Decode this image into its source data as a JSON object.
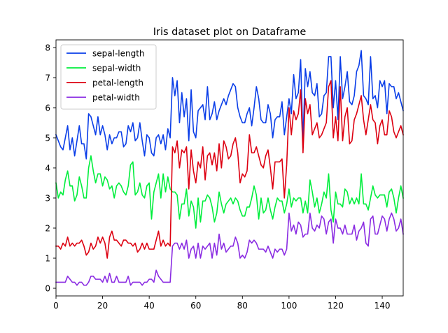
{
  "chart_data": {
    "type": "line",
    "title": "Iris dataset plot on Dataframe",
    "xlabel": "",
    "ylabel": "",
    "xlim": [
      0,
      149
    ],
    "ylim": [
      -0.255,
      8.255
    ],
    "x_ticks": [
      0,
      20,
      40,
      60,
      80,
      100,
      120,
      140
    ],
    "y_ticks": [
      0,
      1,
      2,
      3,
      4,
      5,
      6,
      7,
      8
    ],
    "grid": false,
    "legend_position": "upper-left",
    "series": [
      {
        "name": "sepal-length",
        "color": "#0a3ee8",
        "values": [
          5.1,
          4.9,
          4.7,
          4.6,
          5.0,
          5.4,
          4.6,
          5.0,
          4.4,
          4.9,
          5.4,
          4.8,
          4.8,
          4.3,
          5.8,
          5.7,
          5.4,
          5.1,
          5.7,
          5.1,
          5.4,
          5.1,
          4.6,
          5.1,
          4.8,
          5.0,
          5.0,
          5.2,
          5.2,
          4.7,
          4.8,
          5.4,
          5.2,
          5.5,
          4.9,
          5.0,
          5.5,
          4.9,
          4.4,
          5.1,
          5.0,
          4.5,
          4.4,
          5.0,
          5.1,
          4.8,
          5.1,
          4.6,
          5.3,
          5.0,
          7.0,
          6.4,
          6.9,
          5.5,
          6.5,
          5.7,
          6.3,
          4.9,
          6.6,
          5.2,
          5.0,
          5.9,
          6.0,
          6.1,
          5.6,
          6.7,
          5.6,
          5.8,
          6.2,
          5.6,
          5.9,
          6.1,
          6.3,
          6.1,
          6.4,
          6.6,
          6.8,
          6.7,
          6.0,
          5.7,
          5.5,
          5.5,
          5.8,
          6.0,
          5.4,
          6.0,
          6.7,
          6.3,
          5.6,
          5.5,
          5.5,
          6.1,
          5.8,
          5.0,
          5.6,
          5.7,
          5.7,
          6.2,
          5.1,
          5.7,
          6.3,
          5.8,
          7.1,
          6.3,
          6.5,
          7.6,
          4.9,
          7.3,
          6.7,
          7.2,
          6.5,
          6.4,
          6.8,
          5.7,
          5.8,
          6.4,
          6.5,
          7.7,
          7.7,
          6.0,
          6.9,
          5.6,
          7.7,
          6.3,
          6.7,
          7.2,
          6.2,
          6.1,
          6.4,
          7.2,
          7.4,
          7.9,
          6.4,
          6.3,
          6.1,
          7.7,
          6.3,
          6.4,
          6.0,
          6.9,
          6.7,
          6.9,
          5.8,
          6.8,
          6.7,
          6.7,
          6.3,
          6.5,
          6.2,
          5.9
        ]
      },
      {
        "name": "sepal-width",
        "color": "#00ee3c",
        "values": [
          3.5,
          3.0,
          3.2,
          3.1,
          3.6,
          3.9,
          3.4,
          3.4,
          2.9,
          3.1,
          3.7,
          3.4,
          3.0,
          3.0,
          4.0,
          4.4,
          3.9,
          3.5,
          3.8,
          3.8,
          3.4,
          3.7,
          3.6,
          3.3,
          3.4,
          3.0,
          3.4,
          3.5,
          3.4,
          3.2,
          3.1,
          3.4,
          4.1,
          4.2,
          3.1,
          3.2,
          3.5,
          3.1,
          3.0,
          3.4,
          3.5,
          2.3,
          3.2,
          3.5,
          3.8,
          3.0,
          3.8,
          3.2,
          3.7,
          3.3,
          3.2,
          3.2,
          3.1,
          2.3,
          2.8,
          2.8,
          3.3,
          2.4,
          2.9,
          2.7,
          2.0,
          3.0,
          2.2,
          2.9,
          2.9,
          3.1,
          3.0,
          2.7,
          2.2,
          2.5,
          3.2,
          2.8,
          2.5,
          2.8,
          2.9,
          3.0,
          2.8,
          3.0,
          2.9,
          2.6,
          2.4,
          2.4,
          2.7,
          2.7,
          3.0,
          3.4,
          3.1,
          2.3,
          3.0,
          2.5,
          2.6,
          3.0,
          2.6,
          2.3,
          2.7,
          3.0,
          2.9,
          2.9,
          2.5,
          2.8,
          3.3,
          2.7,
          3.0,
          2.9,
          3.0,
          3.0,
          2.5,
          2.9,
          2.5,
          3.6,
          3.2,
          2.7,
          3.0,
          2.5,
          2.8,
          3.2,
          3.0,
          3.8,
          2.6,
          2.2,
          3.2,
          2.8,
          2.8,
          2.7,
          3.3,
          3.2,
          2.8,
          3.0,
          2.8,
          3.0,
          2.8,
          3.8,
          2.8,
          2.8,
          2.6,
          3.0,
          3.4,
          3.1,
          3.0,
          3.1,
          3.1,
          3.1,
          2.7,
          3.2,
          3.3,
          3.0,
          2.5,
          3.0,
          3.4,
          3.0
        ]
      },
      {
        "name": "petal-length",
        "color": "#dd0011",
        "values": [
          1.4,
          1.4,
          1.3,
          1.5,
          1.4,
          1.7,
          1.4,
          1.5,
          1.4,
          1.5,
          1.5,
          1.6,
          1.4,
          1.1,
          1.2,
          1.5,
          1.3,
          1.4,
          1.7,
          1.5,
          1.7,
          1.5,
          1.0,
          1.7,
          1.9,
          1.6,
          1.6,
          1.5,
          1.4,
          1.6,
          1.6,
          1.5,
          1.5,
          1.4,
          1.5,
          1.2,
          1.3,
          1.5,
          1.3,
          1.5,
          1.3,
          1.3,
          1.3,
          1.6,
          1.9,
          1.4,
          1.6,
          1.4,
          1.5,
          1.4,
          4.7,
          4.5,
          4.9,
          4.0,
          4.6,
          4.5,
          4.7,
          3.3,
          4.6,
          3.9,
          3.5,
          4.2,
          4.0,
          4.7,
          3.6,
          4.4,
          4.5,
          4.1,
          4.5,
          3.9,
          4.8,
          4.0,
          4.9,
          4.7,
          4.3,
          4.4,
          4.8,
          5.0,
          4.5,
          3.5,
          3.8,
          3.7,
          3.9,
          5.1,
          4.5,
          4.5,
          4.7,
          4.4,
          4.1,
          4.0,
          4.4,
          4.6,
          4.0,
          3.3,
          4.2,
          4.2,
          4.2,
          4.3,
          3.0,
          4.1,
          6.0,
          5.1,
          5.9,
          5.6,
          5.8,
          6.6,
          4.5,
          6.3,
          5.8,
          6.1,
          5.1,
          5.3,
          5.5,
          5.0,
          5.1,
          5.3,
          5.5,
          6.7,
          6.9,
          5.0,
          5.7,
          4.9,
          6.7,
          4.9,
          5.7,
          6.0,
          4.8,
          4.9,
          5.6,
          5.8,
          6.1,
          6.4,
          5.6,
          5.1,
          5.6,
          6.1,
          5.6,
          5.5,
          4.8,
          5.4,
          5.6,
          5.1,
          5.1,
          5.9,
          5.7,
          5.2,
          5.0,
          5.2,
          5.4,
          5.1
        ]
      },
      {
        "name": "petal-width",
        "color": "#8a2be2",
        "values": [
          0.2,
          0.2,
          0.2,
          0.2,
          0.2,
          0.4,
          0.3,
          0.2,
          0.2,
          0.1,
          0.2,
          0.2,
          0.1,
          0.1,
          0.2,
          0.4,
          0.4,
          0.3,
          0.3,
          0.3,
          0.2,
          0.4,
          0.2,
          0.5,
          0.2,
          0.2,
          0.4,
          0.2,
          0.2,
          0.2,
          0.2,
          0.4,
          0.1,
          0.2,
          0.2,
          0.2,
          0.2,
          0.1,
          0.2,
          0.2,
          0.3,
          0.3,
          0.2,
          0.6,
          0.4,
          0.3,
          0.2,
          0.2,
          0.2,
          0.2,
          1.4,
          1.5,
          1.5,
          1.3,
          1.5,
          1.3,
          1.6,
          1.0,
          1.3,
          1.4,
          1.0,
          1.5,
          1.0,
          1.4,
          1.3,
          1.4,
          1.5,
          1.0,
          1.5,
          1.1,
          1.8,
          1.3,
          1.5,
          1.2,
          1.3,
          1.4,
          1.4,
          1.7,
          1.5,
          1.0,
          1.1,
          1.0,
          1.2,
          1.6,
          1.5,
          1.6,
          1.5,
          1.3,
          1.3,
          1.3,
          1.2,
          1.4,
          1.2,
          1.0,
          1.3,
          1.2,
          1.3,
          1.3,
          1.1,
          1.3,
          2.5,
          1.9,
          2.1,
          1.8,
          2.2,
          2.1,
          1.7,
          1.8,
          1.8,
          2.5,
          2.0,
          1.9,
          2.1,
          2.0,
          2.4,
          2.3,
          1.8,
          2.2,
          2.3,
          1.5,
          2.3,
          2.0,
          2.0,
          1.8,
          2.1,
          1.8,
          1.8,
          1.8,
          2.1,
          1.6,
          1.9,
          2.0,
          2.2,
          1.5,
          1.4,
          2.3,
          2.4,
          1.8,
          1.8,
          2.1,
          2.4,
          2.3,
          1.9,
          2.3,
          2.5,
          2.3,
          1.9,
          2.0,
          2.3,
          1.8
        ]
      }
    ]
  }
}
